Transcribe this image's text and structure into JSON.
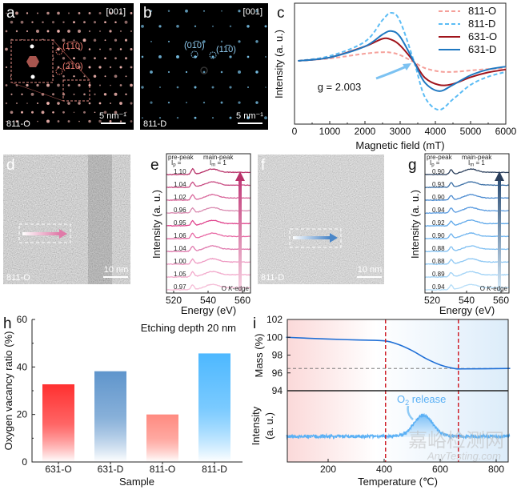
{
  "panels": {
    "a": {
      "letter": "a",
      "zone_axis": "[001]",
      "sample": "811-O",
      "scale_bar": "5 nm⁻¹",
      "spot_labels": [
        "(1̅1̅0)",
        "(2̅10)"
      ],
      "spot_color": "#f4b6b0",
      "annotation_color": "#f07c70"
    },
    "b": {
      "letter": "b",
      "zone_axis": "[001]",
      "sample": "811-D",
      "scale_bar": "5 nm⁻¹",
      "spot_labels": [
        "(01̅0)",
        "(11̅0)"
      ],
      "spot_color": "#7cc8f0",
      "annotation_color": "#8ec9ee"
    },
    "d": {
      "letter": "d",
      "sample": "811-O",
      "scale_bar": "10 nm",
      "arrow_color": "#e07aa8"
    },
    "f": {
      "letter": "f",
      "sample": "811-D",
      "scale_bar": "10 nm",
      "arrow_color": "#4a86c8"
    }
  },
  "watermark": {
    "line1": "嘉峪检测网",
    "line2": "AnyTesting.com"
  },
  "chart_data": [
    {
      "panel": "c",
      "type": "line",
      "xlabel": "Magnetic field (mT)",
      "ylabel": "Intensity (a. u.)",
      "xlim": [
        0,
        6000
      ],
      "xticks": [
        0,
        1000,
        2000,
        3000,
        4000,
        5000,
        6000
      ],
      "x": [
        100,
        1000,
        2000,
        2500,
        2750,
        3000,
        3400,
        3700,
        4100,
        4500,
        5000,
        5500,
        6000
      ],
      "series": [
        {
          "name": "811-O",
          "color": "#f5a09a",
          "dash": true,
          "values": [
            0,
            0.05,
            0.15,
            0.18,
            0.17,
            0.12,
            -0.03,
            -0.15,
            -0.22,
            -0.23,
            -0.2,
            -0.17,
            -0.15
          ]
        },
        {
          "name": "811-D",
          "color": "#5bbcf5",
          "dash": true,
          "values": [
            0,
            0.1,
            0.4,
            0.85,
            1.0,
            0.82,
            -0.03,
            -0.75,
            -1.02,
            -0.8,
            -0.5,
            -0.33,
            -0.23
          ]
        },
        {
          "name": "631-O",
          "color": "#a0141c",
          "dash": false,
          "values": [
            0,
            0.07,
            0.3,
            0.46,
            0.44,
            0.32,
            -0.03,
            -0.35,
            -0.5,
            -0.48,
            -0.34,
            -0.24,
            -0.18
          ]
        },
        {
          "name": "631-D",
          "color": "#1f78c1",
          "dash": false,
          "values": [
            0,
            0.07,
            0.3,
            0.55,
            0.62,
            0.5,
            -0.03,
            -0.45,
            -0.63,
            -0.5,
            -0.3,
            -0.18,
            -0.12
          ]
        }
      ],
      "annotation": "g = 2.003"
    },
    {
      "panel": "e",
      "type": "line",
      "xlabel": "Energy (eV)",
      "ylabel": "Intensity (a. u.)",
      "xticks": [
        520,
        540,
        560
      ],
      "pre_peak_label": "pre-peak",
      "ip_label": "I",
      "ip_sub": "p",
      "ip_eq": " =",
      "main_peak_label": "main-peak",
      "im_label": "I",
      "im_sub": "m",
      "im_eq": " = 1",
      "edge_label_o": "O ",
      "edge_label_k": "K",
      "edge_label_rest": "-edge",
      "ip_values": [
        "1.10",
        "1.04",
        "1.02",
        "0.96",
        "0.95",
        "1.06",
        "1.04",
        "1.00",
        "1.05",
        "0.97"
      ],
      "colors": [
        "#b8336a",
        "#c94d84",
        "#d8669a",
        "#d98ab0",
        "#e0458e",
        "#e86aa5",
        "#e07aae",
        "#ee99c2",
        "#f2a9cb",
        "#f5bcd6"
      ]
    },
    {
      "panel": "g",
      "type": "line",
      "xlabel": "Energy (eV)",
      "ylabel": "Intensity (a. u.)",
      "xticks": [
        520,
        540,
        560
      ],
      "pre_peak_label": "pre-peak",
      "ip_label": "I",
      "ip_sub": "p",
      "ip_eq": " =",
      "main_peak_label": "main-peak",
      "im_label": "I",
      "im_sub": "m",
      "im_eq": " = 1",
      "edge_label_o": "O ",
      "edge_label_k": "K",
      "edge_label_rest": "-edge",
      "ip_values": [
        "0.90",
        "0.93",
        "0.90",
        "0.94",
        "0.92",
        "0.90",
        "0.88",
        "0.88",
        "0.89",
        "0.94"
      ],
      "colors": [
        "#2b3f5c",
        "#3a6ea5",
        "#4a8ad0",
        "#5a9be0",
        "#5ea8ea",
        "#6db3ef",
        "#7fbff2",
        "#8ec8f4",
        "#a0d2f6",
        "#b5ddf8"
      ]
    },
    {
      "panel": "h",
      "type": "bar",
      "title": "Etching depth 20 nm",
      "xlabel": "Sample",
      "ylabel": "Oxygen vacancy ratio (%)",
      "ylim": [
        0,
        60
      ],
      "yticks": [
        0,
        20,
        40,
        60
      ],
      "categories": [
        "631-O",
        "631-D",
        "811-O",
        "811-D"
      ],
      "values": [
        32.7,
        38.2,
        20.0,
        45.7
      ],
      "colors": [
        "#ff3030",
        "#5f95cc",
        "#ff8a80",
        "#4db8ff"
      ]
    },
    {
      "panel": "i",
      "type": "line",
      "xlabel": "Temperature (℃)",
      "xlim": [
        50,
        850
      ],
      "xticks": [
        200,
        400,
        600,
        800
      ],
      "top": {
        "ylabel": "Mass (%)",
        "ylim": [
          94,
          102
        ],
        "yticks": [
          94,
          96,
          98,
          100,
          102
        ],
        "x": [
          50,
          200,
          300,
          400,
          450,
          500,
          550,
          600,
          650,
          680,
          850
        ],
        "values": [
          100.0,
          99.8,
          99.7,
          99.6,
          99.2,
          98.5,
          97.6,
          96.9,
          96.5,
          96.45,
          96.5
        ],
        "reference_level": 96.5,
        "color": "#1f6fd6"
      },
      "bottom": {
        "ylabel_1": "Intensity",
        "ylabel_2": "(a. u.)",
        "annotation_main": "O",
        "annotation_sub": "2",
        "annotation_rest": " release",
        "peak_temperature": 540,
        "color": "#5ab0f5"
      },
      "vlines": [
        405,
        665
      ]
    }
  ]
}
